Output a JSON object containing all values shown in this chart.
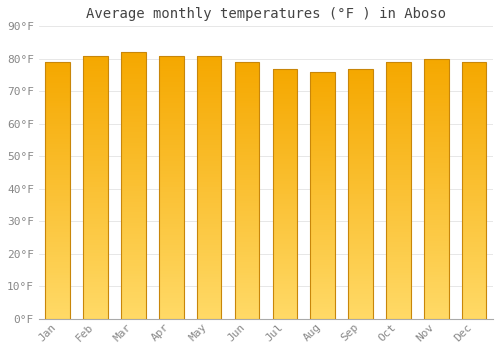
{
  "title": "Average monthly temperatures (°F ) in Aboso",
  "months": [
    "Jan",
    "Feb",
    "Mar",
    "Apr",
    "May",
    "Jun",
    "Jul",
    "Aug",
    "Sep",
    "Oct",
    "Nov",
    "Dec"
  ],
  "values": [
    79,
    81,
    82,
    81,
    81,
    79,
    77,
    76,
    77,
    79,
    80,
    79
  ],
  "ylim": [
    0,
    90
  ],
  "yticks": [
    0,
    10,
    20,
    30,
    40,
    50,
    60,
    70,
    80,
    90
  ],
  "ytick_labels": [
    "0°F",
    "10°F",
    "20°F",
    "30°F",
    "40°F",
    "50°F",
    "60°F",
    "70°F",
    "80°F",
    "90°F"
  ],
  "bar_color_top": "#F5A800",
  "bar_color_bottom": "#FFD966",
  "bar_edge_color": "#C8860A",
  "background_color": "#FFFFFF",
  "grid_color": "#DDDDDD",
  "title_fontsize": 10,
  "tick_fontsize": 8,
  "title_color": "#444444",
  "tick_color": "#888888",
  "bar_width": 0.65,
  "n_gradient_steps": 100
}
